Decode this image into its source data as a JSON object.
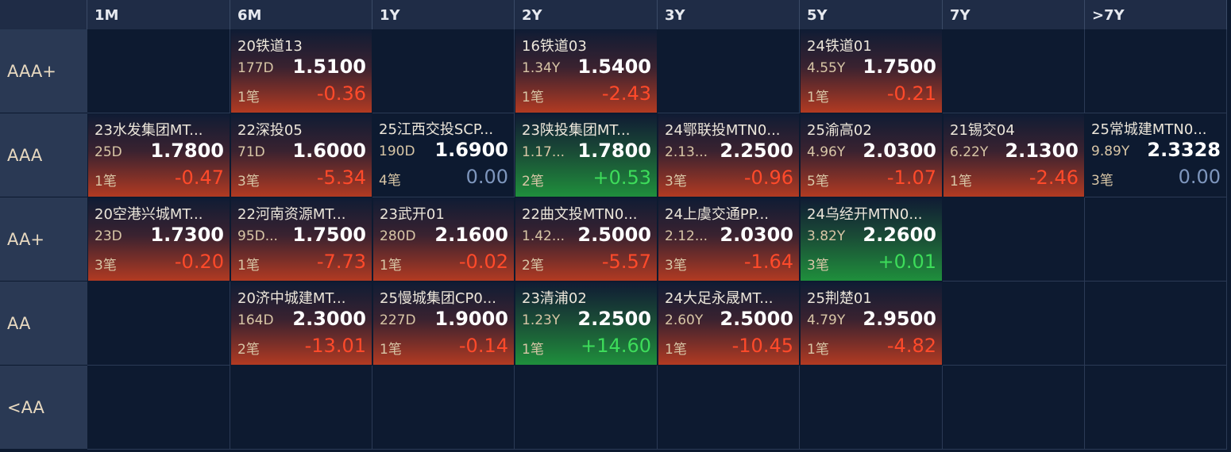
{
  "table": {
    "columns": [
      "1M",
      "6M",
      "1Y",
      "2Y",
      "3Y",
      "5Y",
      "7Y",
      ">7Y"
    ],
    "rows": [
      {
        "label": "AAA+",
        "cells": [
          null,
          {
            "name": "20铁道13",
            "term": "177D",
            "yield": "1.5100",
            "count": "1笔",
            "change": "-0.36"
          },
          null,
          {
            "name": "16铁道03",
            "term": "1.34Y",
            "yield": "1.5400",
            "count": "1笔",
            "change": "-2.43"
          },
          null,
          {
            "name": "24铁道01",
            "term": "4.55Y",
            "yield": "1.7500",
            "count": "1笔",
            "change": "-0.21"
          },
          null,
          null
        ]
      },
      {
        "label": "AAA",
        "cells": [
          {
            "name": "23水发集团MT...",
            "term": "25D",
            "yield": "1.7800",
            "count": "1笔",
            "change": "-0.47"
          },
          {
            "name": "22深投05",
            "term": "71D",
            "yield": "1.6000",
            "count": "3笔",
            "change": "-5.34"
          },
          {
            "name": "25江西交投SCP...",
            "term": "190D",
            "yield": "1.6900",
            "count": "4笔",
            "change": "0.00"
          },
          {
            "name": "23陕投集团MT...",
            "term": "1.17...",
            "yield": "1.7800",
            "count": "2笔",
            "change": "+0.53"
          },
          {
            "name": "24鄂联投MTN0...",
            "term": "2.13...",
            "yield": "2.2500",
            "count": "3笔",
            "change": "-0.96"
          },
          {
            "name": "25渝高02",
            "term": "4.96Y",
            "yield": "2.0300",
            "count": "5笔",
            "change": "-1.07"
          },
          {
            "name": "21锡交04",
            "term": "6.22Y",
            "yield": "2.1300",
            "count": "1笔",
            "change": "-2.46"
          },
          {
            "name": "25常城建MTN0...",
            "term": "9.89Y",
            "yield": "2.3328",
            "count": "3笔",
            "change": "0.00"
          }
        ]
      },
      {
        "label": "AA+",
        "cells": [
          {
            "name": "20空港兴城MT...",
            "term": "23D",
            "yield": "1.7300",
            "count": "3笔",
            "change": "-0.20"
          },
          {
            "name": "22河南资源MT...",
            "term": "95D...",
            "yield": "1.7500",
            "count": "1笔",
            "change": "-7.73"
          },
          {
            "name": "23武开01",
            "term": "280D",
            "yield": "2.1600",
            "count": "1笔",
            "change": "-0.02"
          },
          {
            "name": "22曲文投MTN0...",
            "term": "1.42...",
            "yield": "2.5000",
            "count": "2笔",
            "change": "-5.57"
          },
          {
            "name": "24上虞交通PP...",
            "term": "2.12...",
            "yield": "2.0300",
            "count": "3笔",
            "change": "-1.64"
          },
          {
            "name": "24乌经开MTN0...",
            "term": "3.82Y",
            "yield": "2.2600",
            "count": "3笔",
            "change": "+0.01"
          },
          null,
          null
        ]
      },
      {
        "label": "AA",
        "cells": [
          null,
          {
            "name": "20济中城建MT...",
            "term": "164D",
            "yield": "2.3000",
            "count": "2笔",
            "change": "-13.01"
          },
          {
            "name": "25慢城集团CP0...",
            "term": "227D",
            "yield": "1.9000",
            "count": "1笔",
            "change": "-0.14"
          },
          {
            "name": "23清浦02",
            "term": "1.23Y",
            "yield": "2.2500",
            "count": "1笔",
            "change": "+14.60"
          },
          {
            "name": "24大足永晟MT...",
            "term": "2.60Y",
            "yield": "2.5000",
            "count": "1笔",
            "change": "-10.45"
          },
          {
            "name": "25荆楚01",
            "term": "4.79Y",
            "yield": "2.9500",
            "count": "1笔",
            "change": "-4.82"
          },
          null,
          null
        ]
      },
      {
        "label": "<AA",
        "cells": [
          null,
          null,
          null,
          null,
          null,
          null,
          null,
          null
        ]
      }
    ]
  }
}
